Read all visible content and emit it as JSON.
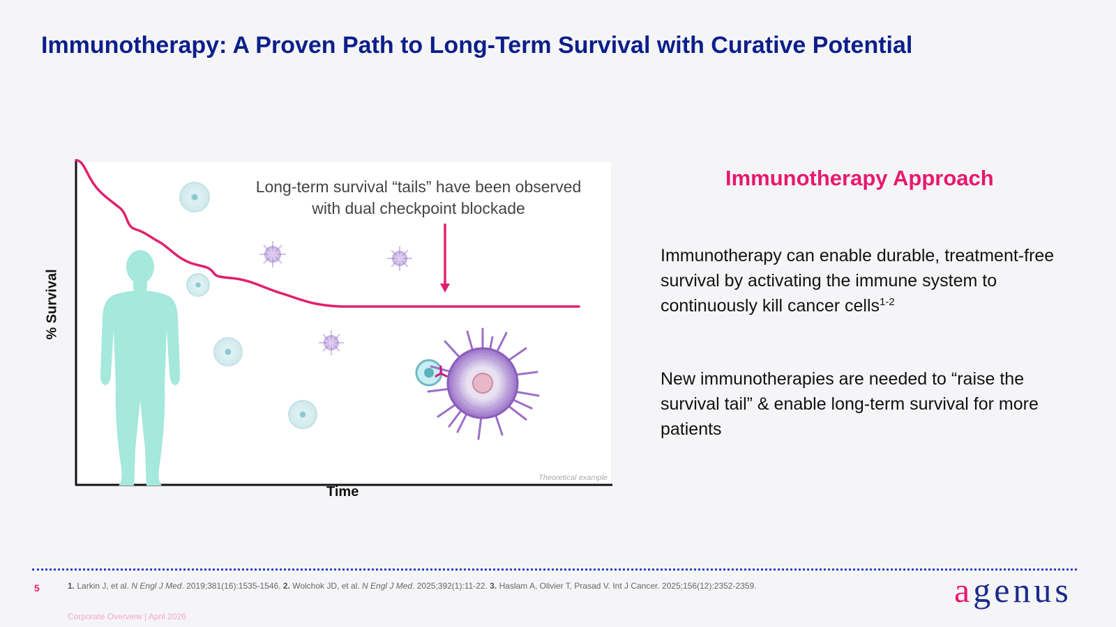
{
  "slide": {
    "title": "Immunotherapy: A Proven Path to Long-Term Survival with Curative Potential",
    "page_number": "5",
    "footer": "Corporate Overview | April 2026"
  },
  "chart": {
    "y_axis_label": "% Survival",
    "x_axis_label": "Time",
    "annotation_line1": "Long-term survival “tails” have been observed",
    "annotation_line2": "with dual checkpoint blockade",
    "theoretical_label": "Theoretical example"
  },
  "right": {
    "heading": "Immunotherapy Approach",
    "para1_text": "Immunotherapy can enable durable, treatment-free survival by activating the immune system to continuously kill cancer cells",
    "para1_sup": "1-2",
    "para2_text": "New immunotherapies are needed to “raise the survival tail” & enable long-term survival for more patients"
  },
  "references": {
    "r1_num": "1.",
    "r1_pre": " Larkin J, et al. ",
    "r1_journal": "N Engl J Med",
    "r1_post": ". 2019;381(16):1535-1546. ",
    "r2_num": "2.",
    "r2_pre": " Wolchok JD, et al. ",
    "r2_journal": "N Engl J Med",
    "r2_post": ". 2025;392(1):11-22. ",
    "r3_num": "3.",
    "r3_text": " Haslam A, Olivier T, Prasad V. Int J Cancer. 2025;156(12):2352-2359."
  },
  "logo": {
    "first": "a",
    "rest": "genus"
  },
  "colors": {
    "title_blue": "#0b1f8a",
    "accent_pink": "#e8186e",
    "curve_pink": "#e0206e",
    "body_figure": "#a5e8dc",
    "cancer_purple": "#9a6fc8",
    "divider_blue": "#2b40c8"
  },
  "icons": {
    "figure": "human-body-silhouette",
    "cells": "immune-cell-icon",
    "virus": "cancer-cell-icon",
    "antibody": "antibody-icon"
  }
}
